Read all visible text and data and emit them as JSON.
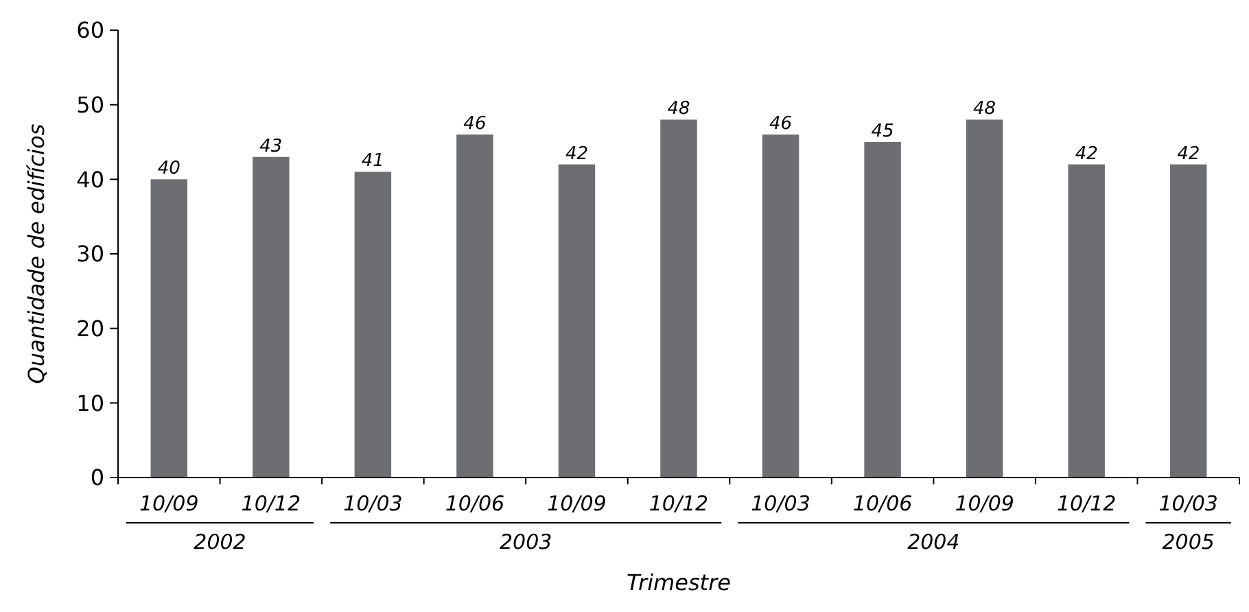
{
  "chart_data": {
    "type": "bar",
    "xlabel": "Trimestre",
    "ylabel": "Quantidade de edifícios",
    "categories": [
      "10/09",
      "10/12",
      "10/03",
      "10/06",
      "10/09",
      "10/12",
      "10/03",
      "10/06",
      "10/09",
      "10/12",
      "10/03"
    ],
    "values": [
      40,
      43,
      41,
      46,
      42,
      48,
      46,
      45,
      48,
      42,
      42
    ],
    "color": "#6d6e71",
    "data_labels": true,
    "ylim": [
      0,
      60
    ],
    "yticks": [
      0,
      10,
      20,
      30,
      40,
      50,
      60
    ],
    "annotations": [
      "2002",
      "2003",
      "2004",
      "2005"
    ]
  }
}
